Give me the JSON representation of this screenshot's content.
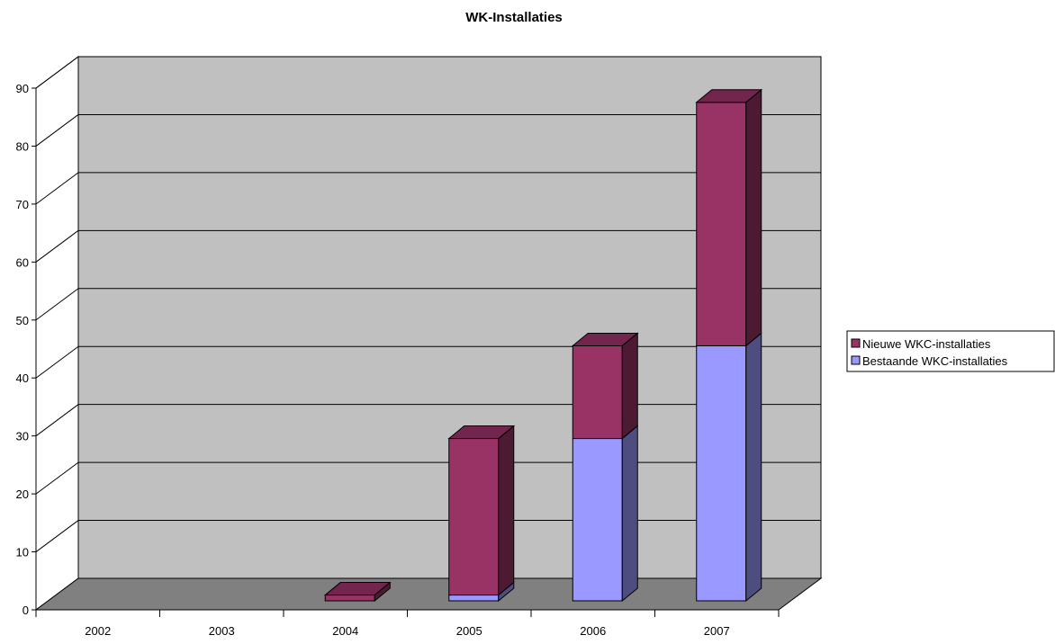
{
  "chart_data": {
    "type": "bar",
    "stacked": true,
    "three_d": true,
    "title": "WK-Installaties",
    "xlabel": "",
    "ylabel": "",
    "categories": [
      "2002",
      "2003",
      "2004",
      "2005",
      "2006",
      "2007"
    ],
    "ylim": [
      0,
      90
    ],
    "yticks": [
      "0",
      "10",
      "20",
      "30",
      "40",
      "50",
      "60",
      "70",
      "80",
      "90"
    ],
    "grid": true,
    "legend_position": "right",
    "series": [
      {
        "name": "Bestaande WKC-installaties",
        "color": "#9999ff",
        "values": [
          0,
          0,
          0,
          1,
          28,
          44
        ]
      },
      {
        "name": "Nieuwe WKC-installaties",
        "color": "#993366",
        "values": [
          0,
          0,
          1,
          27,
          16,
          42
        ]
      }
    ],
    "legend_order": [
      "Nieuwe WKC-installaties",
      "Bestaande WKC-installaties"
    ],
    "colors": {
      "back_wall": "#c0c0c0",
      "floor": "#808080",
      "grid": "#000000"
    }
  }
}
